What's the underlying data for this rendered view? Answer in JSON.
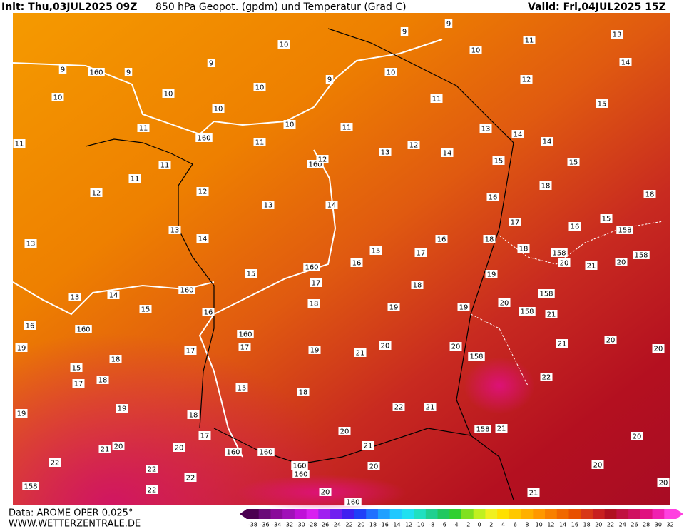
{
  "header": {
    "init": "Init: Thu,03JUL2025 09Z",
    "title": "850 hPa Geopot. (gpdm) und Temperatur (Grad C)",
    "valid": "Valid: Fri,04JUL2025 15Z"
  },
  "footer": {
    "data": "Data: AROME OPER 0.025°",
    "site": "WWW.WETTERZENTRALE.DE"
  },
  "colorbar": {
    "labels": [
      -38,
      -36,
      -34,
      -32,
      -30,
      -28,
      -26,
      -24,
      -22,
      -20,
      -18,
      -16,
      -14,
      -12,
      -10,
      -8,
      -6,
      -4,
      -2,
      0,
      2,
      4,
      6,
      8,
      10,
      12,
      14,
      16,
      18,
      20,
      22,
      24,
      26,
      28,
      30,
      32
    ],
    "colors": [
      "#4b0050",
      "#6a0a78",
      "#8a0a9a",
      "#a010b8",
      "#c010d8",
      "#d820f0",
      "#a020f0",
      "#7020f0",
      "#4020f0",
      "#2040f8",
      "#2070ff",
      "#20a0ff",
      "#20c8ff",
      "#20e0f0",
      "#20e0c0",
      "#20d090",
      "#20c860",
      "#30d030",
      "#80e020",
      "#c0f020",
      "#f0f020",
      "#ffe000",
      "#ffc800",
      "#ffb000",
      "#ff9800",
      "#f88000",
      "#f06800",
      "#e85000",
      "#d83818",
      "#c82020",
      "#b01020",
      "#c01040",
      "#d01060",
      "#e01080",
      "#f020b0",
      "#ff40e0"
    ]
  },
  "map_labels": [
    9,
    9,
    10,
    10,
    11,
    13,
    14,
    9,
    160,
    9,
    9,
    10,
    9,
    12,
    10,
    10,
    10,
    11,
    15,
    10,
    10,
    11,
    13,
    14,
    11,
    160,
    11,
    12,
    14,
    14,
    11,
    13,
    15,
    15,
    11,
    160,
    12,
    11,
    18,
    12,
    12,
    16,
    13,
    14,
    18,
    13,
    14,
    17,
    16,
    15,
    13,
    16,
    18,
    15,
    17,
    18,
    160,
    16,
    15,
    19,
    13,
    14,
    160,
    17,
    18,
    15,
    16,
    18,
    19,
    19,
    16,
    160,
    160,
    20,
    20,
    20,
    19,
    17,
    17,
    19,
    21,
    18,
    15,
    17,
    18,
    15,
    18,
    19,
    19,
    18,
    22,
    21,
    20,
    158,
    21,
    17,
    21,
    20,
    20,
    21,
    20,
    22,
    160,
    160,
    20,
    20,
    22,
    22,
    160,
    158,
    160,
    22,
    20,
    160,
    21,
    20,
    21,
    20,
    158,
    158,
    158,
    20,
    158,
    158,
    20,
    21,
    21,
    158,
    22,
    20
  ]
}
